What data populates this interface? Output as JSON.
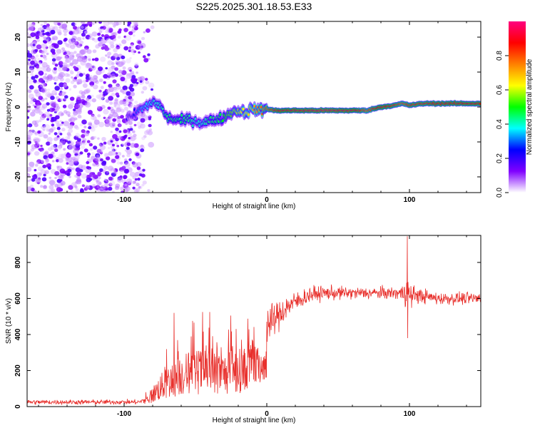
{
  "title": "S225.2025.301.18.53.E33",
  "chart_data": [
    {
      "type": "heatmap",
      "name": "spectrogram",
      "xlabel": "Height of straight line (km)",
      "ylabel": "Frequency (Hz)",
      "xlim": [
        -168,
        150
      ],
      "ylim": [
        -24.5,
        24.5
      ],
      "xticks": [
        -100,
        0,
        100
      ],
      "yticks": [
        -20,
        -10,
        0,
        10,
        20
      ],
      "ridge_track": {
        "x": [
          -95,
          -90,
          -85,
          -80,
          -75,
          -70,
          -65,
          -60,
          -55,
          -50,
          -45,
          -40,
          -35,
          -30,
          -25,
          -20,
          -15,
          -10,
          -5,
          0,
          5,
          10,
          20,
          40,
          60,
          70,
          80,
          90,
          95,
          100,
          110,
          120,
          130,
          140,
          150
        ],
        "y": [
          -3,
          -1,
          0,
          1.5,
          0.5,
          -3,
          -3.5,
          -4,
          -3.5,
          -4,
          -4.5,
          -4,
          -3.5,
          -3,
          -1.5,
          -1,
          -1.5,
          -0.5,
          -1,
          -0.5,
          -1,
          -1,
          -1,
          -1,
          -1,
          -1,
          0,
          0.5,
          1,
          0.5,
          1,
          1,
          1,
          1,
          1
        ],
        "amplitude": [
          0.2,
          0.3,
          0.35,
          0.4,
          0.4,
          0.45,
          0.45,
          0.45,
          0.45,
          0.4,
          0.4,
          0.45,
          0.45,
          0.5,
          0.55,
          0.6,
          0.65,
          0.7,
          0.75,
          0.8,
          0.85,
          0.9,
          0.92,
          0.95,
          0.92,
          0.8,
          0.9,
          0.85,
          0.8,
          0.85,
          0.85,
          0.88,
          0.88,
          0.88,
          0.88
        ]
      },
      "noise_region": {
        "x_from": -168,
        "x_to": -85,
        "amplitude": 0.12
      }
    },
    {
      "type": "colorbar",
      "label": "Normalized spectral amplitude",
      "range": [
        0.0,
        1.0
      ],
      "ticks": [
        "0.0",
        "0.2",
        "0.4",
        "0.6",
        "0.8"
      ],
      "tick_values": [
        0.0,
        0.2,
        0.4,
        0.6,
        0.8
      ]
    },
    {
      "type": "line",
      "name": "snr",
      "xlabel": "Height of straight line (km)",
      "ylabel": "SNR (10 * v/v)",
      "xlim": [
        -168,
        150
      ],
      "ylim": [
        0,
        950
      ],
      "xticks": [
        -100,
        0,
        100
      ],
      "yticks": [
        0,
        200,
        400,
        600,
        800
      ],
      "color": "#e8302c",
      "envelope": {
        "x": [
          -168,
          -90,
          -85,
          -80,
          -75,
          -70,
          -60,
          -50,
          -40,
          -30,
          -20,
          -10,
          -5,
          0,
          5,
          10,
          15,
          20,
          25,
          30,
          40,
          60,
          80,
          90,
          96,
          98,
          100,
          104,
          120,
          150
        ],
        "mean": [
          25,
          25,
          35,
          60,
          90,
          120,
          170,
          190,
          180,
          180,
          200,
          320,
          360,
          450,
          480,
          520,
          560,
          580,
          600,
          620,
          630,
          630,
          630,
          630,
          630,
          700,
          610,
          620,
          600,
          600
        ],
        "noise": [
          12,
          12,
          20,
          50,
          80,
          100,
          130,
          140,
          140,
          130,
          140,
          130,
          110,
          90,
          80,
          70,
          60,
          50,
          45,
          40,
          35,
          30,
          30,
          30,
          40,
          180,
          60,
          40,
          30,
          30
        ]
      },
      "spikes": [
        {
          "x": -65,
          "y": 520
        },
        {
          "x": -45,
          "y": 525
        },
        {
          "x": -40,
          "y": 525
        },
        {
          "x": 98.5,
          "y": 945
        },
        {
          "x": 98.8,
          "y": 380
        }
      ]
    }
  ],
  "colormap": [
    "#ffffff",
    "#8000ff",
    "#0000ff",
    "#00ffff",
    "#00ff00",
    "#ffff00",
    "#ff8000",
    "#ff0000",
    "#ff0080"
  ]
}
